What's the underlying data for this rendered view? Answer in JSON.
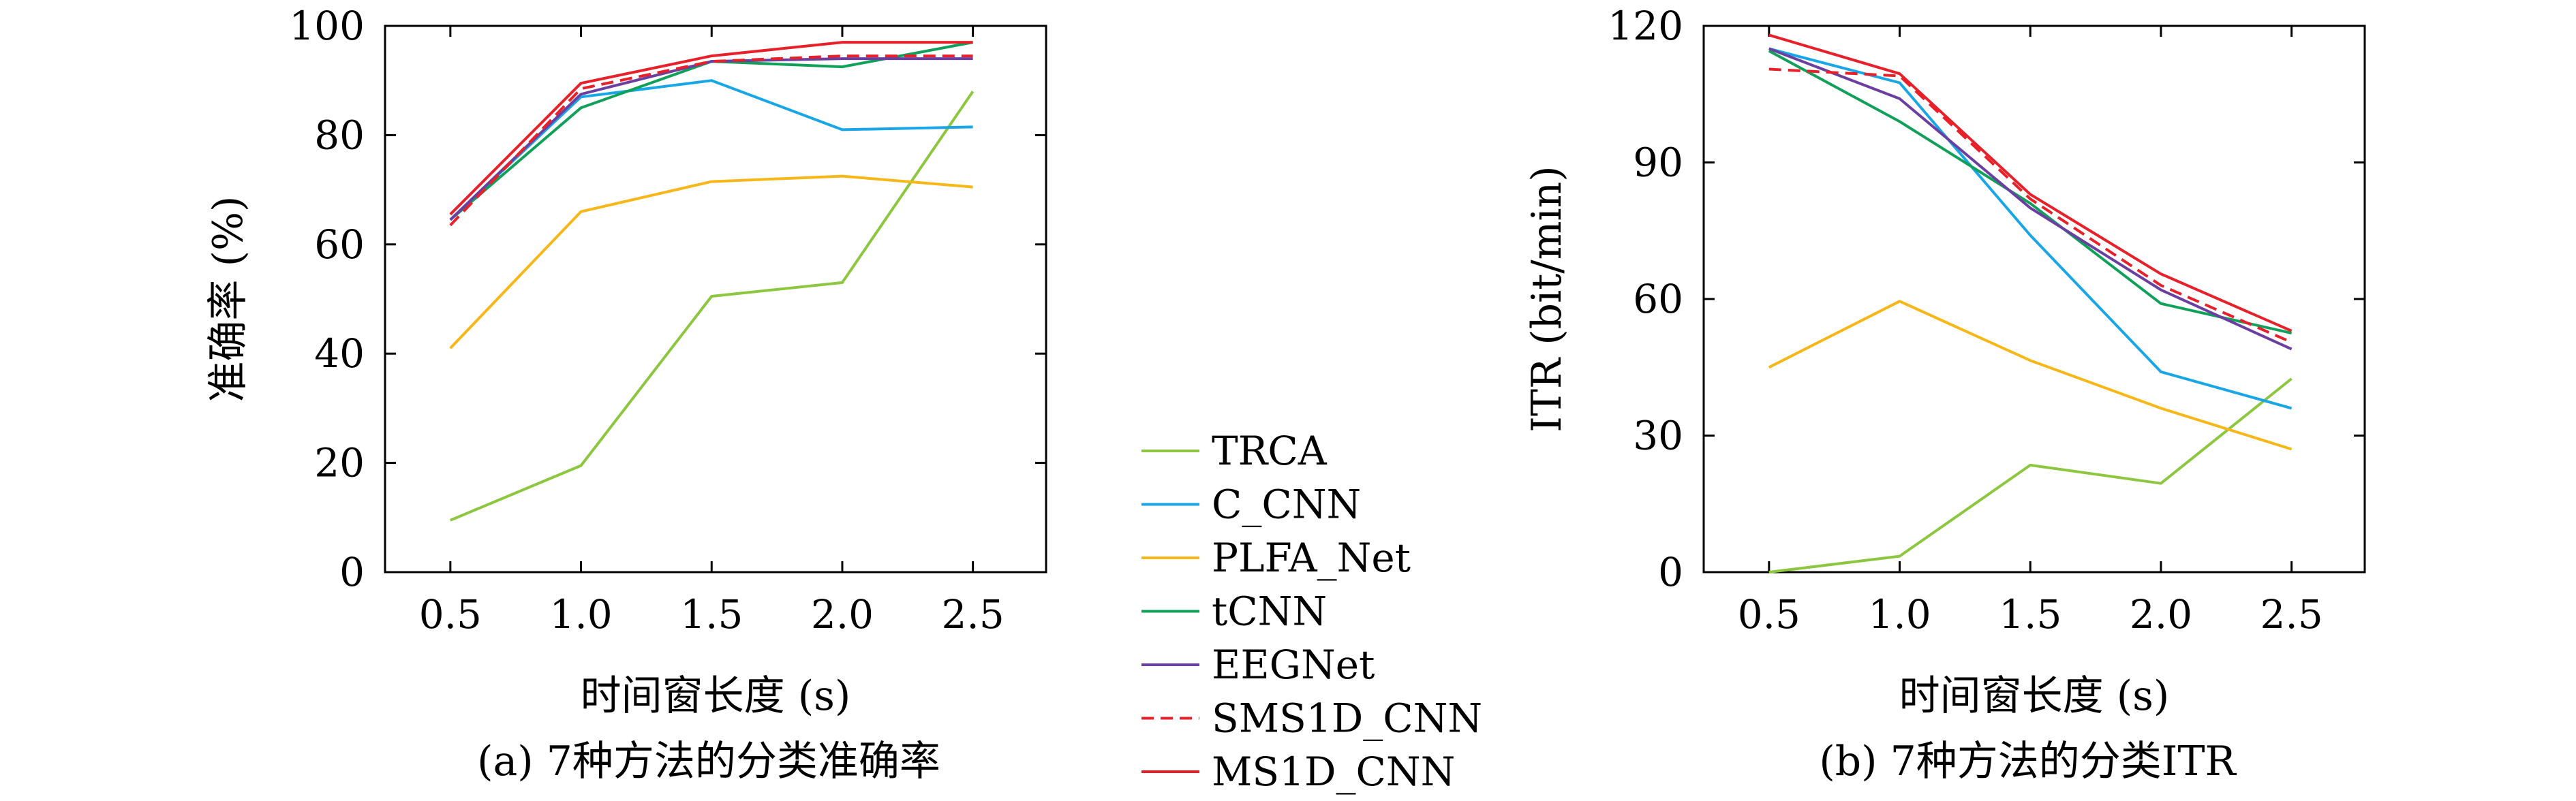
{
  "chart_data": [
    {
      "type": "line",
      "caption": "(a) 7种方法的分类准确率",
      "xlabel": "时间窗长度 (s)",
      "ylabel": "准确率 (%)",
      "x": [
        0.5,
        1.0,
        1.5,
        2.0,
        2.5
      ],
      "x_ticks": [
        "0.5",
        "1.0",
        "1.5",
        "2.0",
        "2.5"
      ],
      "y_ticks": [
        "0",
        "20",
        "40",
        "60",
        "80",
        "100"
      ],
      "xlim": [
        0.25,
        2.78
      ],
      "ylim": [
        0,
        100
      ],
      "grid": false,
      "series": [
        {
          "name": "TRCA",
          "values": [
            9.5,
            19.5,
            50.5,
            53.0,
            88.0
          ]
        },
        {
          "name": "C_CNN",
          "values": [
            64.5,
            87.0,
            90.0,
            81.0,
            81.5
          ]
        },
        {
          "name": "PLFA_Net",
          "values": [
            41.0,
            66.0,
            71.5,
            72.5,
            70.5
          ]
        },
        {
          "name": "tCNN",
          "values": [
            64.5,
            85.0,
            93.5,
            92.5,
            97.0
          ]
        },
        {
          "name": "EEGNet",
          "values": [
            64.5,
            87.5,
            93.5,
            94.0,
            94.0
          ]
        },
        {
          "name": "SMS1D_CNN",
          "values": [
            63.5,
            88.5,
            93.5,
            94.5,
            94.5
          ]
        },
        {
          "name": "MS1D_CNN",
          "values": [
            65.5,
            89.5,
            94.5,
            97.0,
            97.0
          ]
        }
      ]
    },
    {
      "type": "line",
      "caption": "(b) 7种方法的分类ITR",
      "xlabel": "时间窗长度 (s)",
      "ylabel": "ITR (bit/min)",
      "x": [
        0.5,
        1.0,
        1.5,
        2.0,
        2.5
      ],
      "x_ticks": [
        "0.5",
        "1.0",
        "1.5",
        "2.0",
        "2.5"
      ],
      "y_ticks": [
        "0",
        "30",
        "60",
        "90",
        "120"
      ],
      "xlim": [
        0.25,
        2.78
      ],
      "ylim": [
        0,
        120
      ],
      "grid": false,
      "series": [
        {
          "name": "TRCA",
          "values": [
            0.0,
            3.5,
            23.5,
            19.5,
            42.5
          ]
        },
        {
          "name": "C_CNN",
          "values": [
            115.0,
            107.5,
            74.0,
            44.0,
            36.0
          ]
        },
        {
          "name": "PLFA_Net",
          "values": [
            45.0,
            59.5,
            46.5,
            36.0,
            27.0
          ]
        },
        {
          "name": "tCNN",
          "values": [
            114.5,
            99.0,
            81.0,
            59.0,
            52.5
          ]
        },
        {
          "name": "EEGNet",
          "values": [
            115.0,
            104.0,
            80.0,
            62.0,
            49.0
          ]
        },
        {
          "name": "SMS1D_CNN",
          "values": [
            110.5,
            109.0,
            82.0,
            63.0,
            50.5
          ]
        },
        {
          "name": "MS1D_CNN",
          "values": [
            118.0,
            109.5,
            83.0,
            65.5,
            53.0
          ]
        }
      ]
    }
  ],
  "legend": {
    "placement": "center",
    "entries": [
      {
        "name": "TRCA",
        "color": "#8dc63f",
        "dashed": false
      },
      {
        "name": "C_CNN",
        "color": "#18a6e6",
        "dashed": false
      },
      {
        "name": "PLFA_Net",
        "color": "#f7b718",
        "dashed": false
      },
      {
        "name": "tCNN",
        "color": "#11a05a",
        "dashed": false
      },
      {
        "name": "EEGNet",
        "color": "#6a3fa0",
        "dashed": false
      },
      {
        "name": "SMS1D_CNN",
        "color": "#e8202a",
        "dashed": true
      },
      {
        "name": "MS1D_CNN",
        "color": "#e8202a",
        "dashed": false
      }
    ]
  }
}
